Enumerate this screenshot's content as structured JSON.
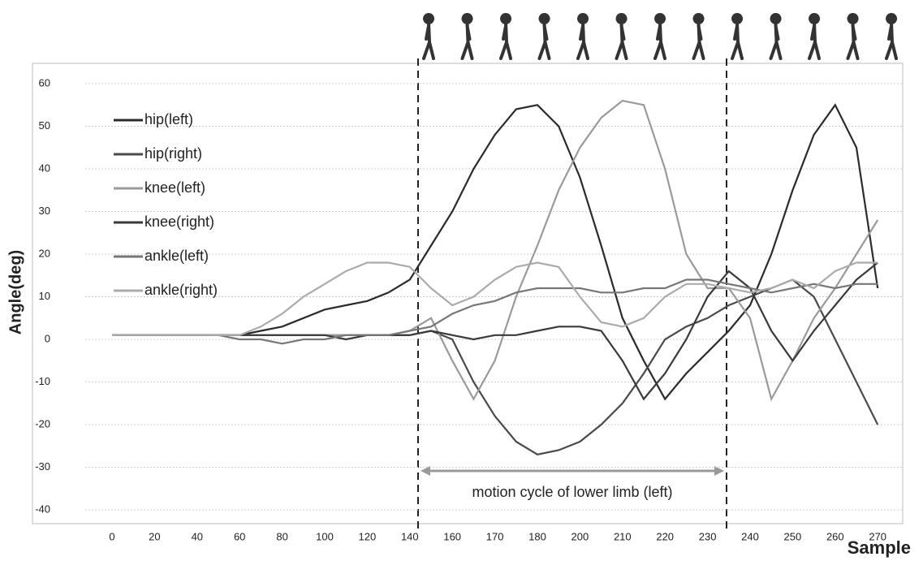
{
  "chart_data": {
    "type": "line",
    "y_label": "Angle(deg)",
    "x_label": "Sample",
    "annotation": "motion cycle of lower limb (left)",
    "categories": [
      "0",
      null,
      "20",
      null,
      "40",
      null,
      "60",
      null,
      "80",
      null,
      "100",
      null,
      "120",
      null,
      "140",
      null,
      "160",
      null,
      "170",
      null,
      "180",
      null,
      "200",
      null,
      "210",
      null,
      "220",
      null,
      "230",
      null,
      "240",
      null,
      "250",
      null,
      "260",
      null,
      "270"
    ],
    "series": [
      {
        "name": "hip(left)",
        "color": "#2b2b2b",
        "values": [
          1,
          1,
          1,
          1,
          1,
          1,
          1,
          2,
          3,
          5,
          7,
          8,
          9,
          11,
          14,
          22,
          30,
          40,
          48,
          54,
          55,
          50,
          38,
          22,
          5,
          -5,
          -14,
          -8,
          -3,
          2,
          8,
          20,
          35,
          48,
          55,
          45,
          12
        ]
      },
      {
        "name": "hip(right)",
        "color": "#4a4a4a",
        "values": [
          1,
          1,
          1,
          1,
          1,
          1,
          1,
          1,
          1,
          1,
          1,
          1,
          1,
          1,
          1,
          2,
          0,
          -10,
          -18,
          -24,
          -27,
          -26,
          -24,
          -20,
          -15,
          -8,
          0,
          3,
          5,
          8,
          10,
          12,
          14,
          10,
          0,
          -10,
          -20
        ]
      },
      {
        "name": "knee(left)",
        "color": "#9a9a9a",
        "values": [
          1,
          1,
          1,
          1,
          1,
          1,
          1,
          1,
          1,
          1,
          1,
          1,
          1,
          1,
          2,
          5,
          -5,
          -14,
          -5,
          10,
          22,
          35,
          45,
          52,
          56,
          55,
          40,
          20,
          12,
          12,
          5,
          -14,
          -5,
          5,
          12,
          20,
          28
        ]
      },
      {
        "name": "knee(right)",
        "color": "#3a3a3a",
        "values": [
          1,
          1,
          1,
          1,
          1,
          1,
          1,
          1,
          1,
          1,
          1,
          0,
          1,
          1,
          1,
          2,
          1,
          0,
          1,
          1,
          2,
          3,
          3,
          2,
          -5,
          -14,
          -8,
          0,
          10,
          16,
          12,
          2,
          -5,
          2,
          8,
          14,
          18
        ]
      },
      {
        "name": "ankle(left)",
        "color": "#777777",
        "values": [
          1,
          1,
          1,
          1,
          1,
          1,
          0,
          0,
          -1,
          0,
          0,
          1,
          1,
          1,
          2,
          3,
          6,
          8,
          9,
          11,
          12,
          12,
          12,
          11,
          11,
          12,
          12,
          14,
          14,
          13,
          12,
          11,
          12,
          13,
          12,
          13,
          13
        ]
      },
      {
        "name": "ankle(right)",
        "color": "#ababab",
        "values": [
          1,
          1,
          1,
          1,
          1,
          1,
          1,
          3,
          6,
          10,
          13,
          16,
          18,
          18,
          17,
          12,
          8,
          10,
          14,
          17,
          18,
          17,
          10,
          4,
          3,
          5,
          10,
          13,
          13,
          12,
          11,
          12,
          14,
          12,
          16,
          18,
          18
        ]
      }
    ],
    "ylim": [
      -40,
      60
    ],
    "yticks": [
      -40,
      -30,
      -20,
      -10,
      0,
      10,
      20,
      30,
      40,
      50,
      60
    ],
    "grid": true
  }
}
